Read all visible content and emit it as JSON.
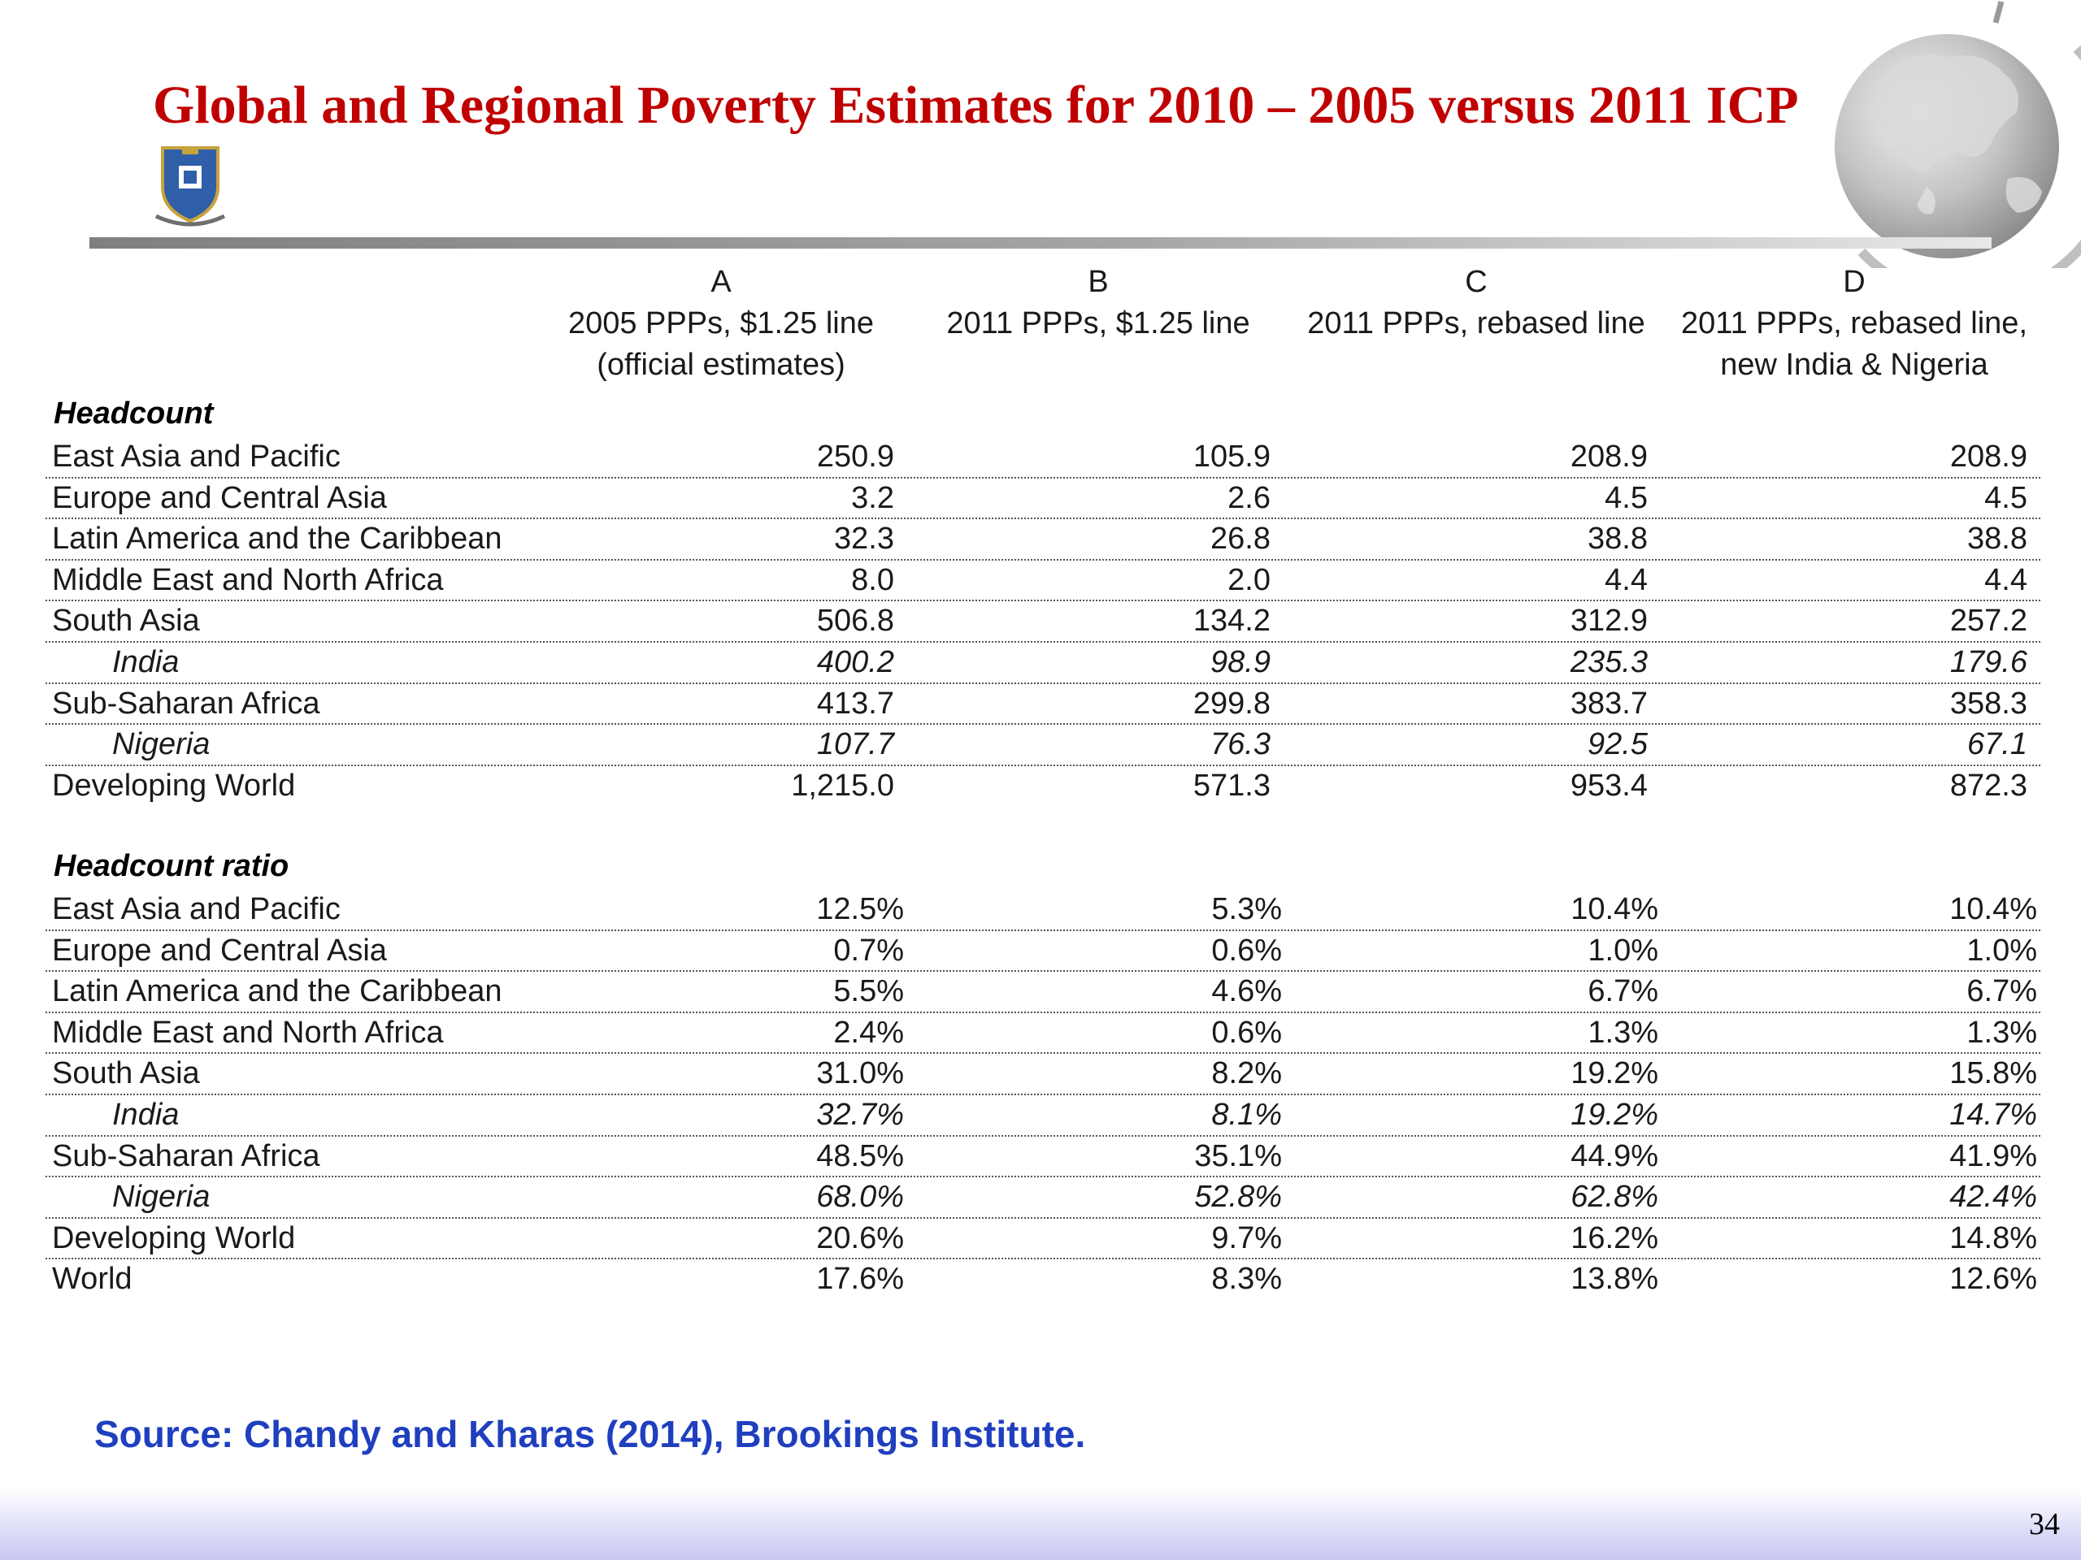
{
  "title": "Global and Regional Poverty Estimates for 2010 – 2005 versus 2011 ICP",
  "icons": {
    "logo": "university-crest-icon",
    "decoration": "globe-icon"
  },
  "colors": {
    "title": "#c00000",
    "source": "#1f3fbf",
    "rule": "#8c8c8c"
  },
  "columns": [
    {
      "letter": "A",
      "line1": "2005 PPPs, $1.25 line",
      "line2": "(official estimates)"
    },
    {
      "letter": "B",
      "line1": "2011 PPPs, $1.25 line",
      "line2": ""
    },
    {
      "letter": "C",
      "line1": "2011 PPPs, rebased line",
      "line2": ""
    },
    {
      "letter": "D",
      "line1": "2011 PPPs, rebased line,",
      "line2": "new India & Nigeria"
    }
  ],
  "sections": [
    {
      "label": "Headcount",
      "rows": [
        {
          "name": "East Asia and Pacific",
          "sub": false,
          "values": [
            "250.9",
            "105.9",
            "208.9",
            "208.9"
          ]
        },
        {
          "name": "Europe and Central Asia",
          "sub": false,
          "values": [
            "3.2",
            "2.6",
            "4.5",
            "4.5"
          ]
        },
        {
          "name": "Latin America and the Caribbean",
          "sub": false,
          "values": [
            "32.3",
            "26.8",
            "38.8",
            "38.8"
          ]
        },
        {
          "name": "Middle East and North Africa",
          "sub": false,
          "values": [
            "8.0",
            "2.0",
            "4.4",
            "4.4"
          ]
        },
        {
          "name": "South Asia",
          "sub": false,
          "values": [
            "506.8",
            "134.2",
            "312.9",
            "257.2"
          ]
        },
        {
          "name": "India",
          "sub": true,
          "values": [
            "400.2",
            "98.9",
            "235.3",
            "179.6"
          ]
        },
        {
          "name": "Sub-Saharan Africa",
          "sub": false,
          "values": [
            "413.7",
            "299.8",
            "383.7",
            "358.3"
          ]
        },
        {
          "name": "Nigeria",
          "sub": true,
          "values": [
            "107.7",
            "76.3",
            "92.5",
            "67.1"
          ]
        },
        {
          "name": "Developing World",
          "sub": false,
          "values": [
            "1,215.0",
            "571.3",
            "953.4",
            "872.3"
          ]
        }
      ]
    },
    {
      "label": "Headcount ratio",
      "rows": [
        {
          "name": "East Asia and Pacific",
          "sub": false,
          "values": [
            "12.5%",
            "5.3%",
            "10.4%",
            "10.4%"
          ]
        },
        {
          "name": "Europe and Central Asia",
          "sub": false,
          "values": [
            "0.7%",
            "0.6%",
            "1.0%",
            "1.0%"
          ]
        },
        {
          "name": "Latin America and the Caribbean",
          "sub": false,
          "values": [
            "5.5%",
            "4.6%",
            "6.7%",
            "6.7%"
          ]
        },
        {
          "name": "Middle East and North Africa",
          "sub": false,
          "values": [
            "2.4%",
            "0.6%",
            "1.3%",
            "1.3%"
          ]
        },
        {
          "name": "South Asia",
          "sub": false,
          "values": [
            "31.0%",
            "8.2%",
            "19.2%",
            "15.8%"
          ]
        },
        {
          "name": "India",
          "sub": true,
          "values": [
            "32.7%",
            "8.1%",
            "19.2%",
            "14.7%"
          ]
        },
        {
          "name": "Sub-Saharan Africa",
          "sub": false,
          "values": [
            "48.5%",
            "35.1%",
            "44.9%",
            "41.9%"
          ]
        },
        {
          "name": "Nigeria",
          "sub": true,
          "values": [
            "68.0%",
            "52.8%",
            "62.8%",
            "42.4%"
          ]
        },
        {
          "name": "Developing World",
          "sub": false,
          "values": [
            "20.6%",
            "9.7%",
            "16.2%",
            "14.8%"
          ]
        },
        {
          "name": "World",
          "sub": false,
          "values": [
            "17.6%",
            "8.3%",
            "13.8%",
            "12.6%"
          ]
        }
      ]
    }
  ],
  "source": "Source: Chandy and Kharas (2014), Brookings Institute.",
  "page_number": "34"
}
